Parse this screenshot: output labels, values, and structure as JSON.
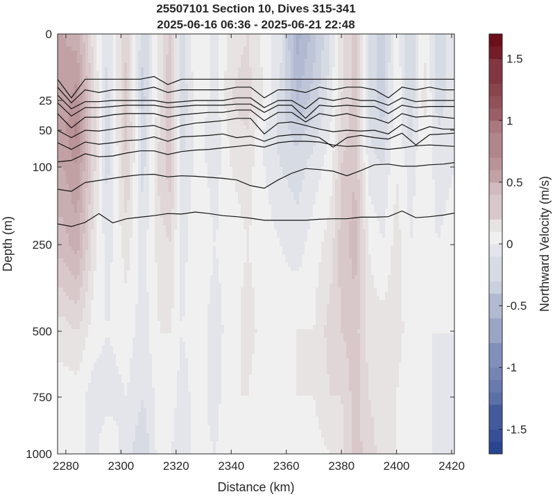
{
  "chart_data": {
    "type": "heatmap",
    "title": "25507101 Section 10, Dives 315-341",
    "subtitle": "2025-06-16 06:36 - 2025-06-21 22:48",
    "xlabel": "Distance (km)",
    "ylabel": "Depth (m)",
    "xlim": [
      2277,
      2421
    ],
    "x_ticks": [
      2280,
      2300,
      2320,
      2340,
      2360,
      2380,
      2400,
      2420
    ],
    "y_scale": "piecewise",
    "y_ticks": [
      0,
      25,
      50,
      100,
      250,
      500,
      750,
      1000
    ],
    "ylim": [
      0,
      1000
    ],
    "y_reversed": true,
    "grid": false,
    "colorbar": {
      "label": "Northward Velocity (m/s)",
      "range": [
        -1.7,
        1.7
      ],
      "ticks": [
        -1.5,
        -1,
        -0.5,
        0,
        0.5,
        1,
        1.5
      ],
      "tick_labels": [
        "-1.5",
        "-1",
        "-0.5",
        "0",
        "0.5",
        "1",
        "1.5"
      ],
      "colormap": "blue-white-red diverging",
      "negative_color": "#1e3a8a",
      "zero_color": "#f0f0f0",
      "positive_color": "#6b0f1a"
    },
    "velocity_profiles": [
      {
        "x": 2279,
        "values": [
          0.55,
          0.6,
          0.6,
          0.55,
          0.4,
          0.1,
          0.0,
          -0.05
        ]
      },
      {
        "x": 2284,
        "values": [
          0.5,
          0.7,
          0.8,
          0.65,
          0.5,
          0.15,
          0.0,
          0.0
        ]
      },
      {
        "x": 2290,
        "values": [
          0.1,
          0.2,
          0.2,
          0.2,
          0.1,
          0.0,
          -0.1,
          -0.1
        ]
      },
      {
        "x": 2295,
        "values": [
          -0.15,
          -0.2,
          -0.2,
          -0.2,
          -0.1,
          -0.05,
          -0.1,
          0.05
        ]
      },
      {
        "x": 2302,
        "values": [
          0.25,
          0.3,
          0.3,
          0.25,
          0.1,
          0.0,
          -0.05,
          -0.1
        ]
      },
      {
        "x": 2308,
        "values": [
          -0.25,
          -0.3,
          -0.2,
          -0.2,
          -0.1,
          -0.1,
          -0.15,
          -0.25
        ]
      },
      {
        "x": 2314,
        "values": [
          0.1,
          0.1,
          0.15,
          0.2,
          0.1,
          0.05,
          0.0,
          0.0
        ]
      },
      {
        "x": 2318,
        "values": [
          0.3,
          0.35,
          0.35,
          0.3,
          0.15,
          0.05,
          0.0,
          -0.05
        ]
      },
      {
        "x": 2322,
        "values": [
          -0.2,
          -0.25,
          -0.2,
          -0.15,
          -0.1,
          -0.05,
          -0.1,
          -0.1
        ]
      },
      {
        "x": 2328,
        "values": [
          0.05,
          0.05,
          0.0,
          0.0,
          0.05,
          0.0,
          0.0,
          0.0
        ]
      },
      {
        "x": 2334,
        "values": [
          -0.1,
          -0.1,
          -0.15,
          -0.1,
          -0.05,
          -0.1,
          -0.1,
          -0.05
        ]
      },
      {
        "x": 2340,
        "values": [
          0.1,
          0.15,
          0.1,
          0.05,
          0.0,
          0.0,
          0.05,
          0.0
        ]
      },
      {
        "x": 2346,
        "values": [
          0.15,
          0.2,
          0.15,
          0.1,
          0.05,
          0.1,
          0.05,
          0.0
        ]
      },
      {
        "x": 2352,
        "values": [
          0.0,
          0.05,
          -0.05,
          -0.05,
          0.0,
          0.0,
          -0.05,
          -0.05
        ]
      },
      {
        "x": 2358,
        "values": [
          -0.1,
          -0.2,
          -0.2,
          -0.15,
          -0.05,
          0.0,
          0.0,
          0.0
        ]
      },
      {
        "x": 2364,
        "values": [
          -0.6,
          -0.45,
          -0.3,
          -0.2,
          -0.1,
          0.05,
          0.05,
          -0.05
        ]
      },
      {
        "x": 2370,
        "values": [
          -0.4,
          -0.3,
          -0.2,
          -0.1,
          0.0,
          0.05,
          0.05,
          0.0
        ]
      },
      {
        "x": 2376,
        "values": [
          -0.15,
          -0.1,
          -0.05,
          0.0,
          0.1,
          0.2,
          0.15,
          0.05
        ]
      },
      {
        "x": 2380,
        "values": [
          0.1,
          0.15,
          0.2,
          0.25,
          0.3,
          0.25,
          0.15,
          0.1
        ]
      },
      {
        "x": 2385,
        "values": [
          0.3,
          0.3,
          0.3,
          0.35,
          0.4,
          0.3,
          0.3,
          0.3
        ]
      },
      {
        "x": 2390,
        "values": [
          -0.2,
          -0.2,
          -0.15,
          -0.1,
          0.05,
          0.1,
          0.15,
          0.2
        ]
      },
      {
        "x": 2395,
        "values": [
          -0.3,
          -0.3,
          -0.25,
          -0.15,
          -0.05,
          0.1,
          0.1,
          0.1
        ]
      },
      {
        "x": 2400,
        "values": [
          0.0,
          0.05,
          0.05,
          0.05,
          0.1,
          0.1,
          0.05,
          0.05
        ]
      },
      {
        "x": 2405,
        "values": [
          -0.25,
          -0.25,
          -0.2,
          -0.1,
          -0.05,
          0.0,
          -0.05,
          -0.05
        ]
      },
      {
        "x": 2410,
        "values": [
          0.05,
          0.1,
          0.05,
          0.05,
          0.0,
          -0.05,
          0.0,
          0.0
        ]
      },
      {
        "x": 2415,
        "values": [
          -0.2,
          -0.2,
          -0.15,
          -0.1,
          -0.05,
          -0.05,
          -0.1,
          -0.1
        ]
      },
      {
        "x": 2421,
        "values": [
          -0.1,
          -0.1,
          -0.05,
          -0.05,
          0.0,
          -0.05,
          -0.1,
          -0.1
        ]
      }
    ],
    "profile_depths": [
      0,
      25,
      50,
      100,
      250,
      500,
      750,
      1000
    ],
    "density_contours": {
      "x": [
        2277,
        2282,
        2287,
        2292,
        2297,
        2302,
        2307,
        2312,
        2317,
        2322,
        2327,
        2332,
        2337,
        2342,
        2347,
        2352,
        2357,
        2362,
        2367,
        2372,
        2377,
        2382,
        2387,
        2392,
        2397,
        2402,
        2407,
        2412,
        2417,
        2421
      ],
      "lines": [
        [
          17,
          24,
          17,
          17,
          17,
          17,
          17,
          16,
          19,
          17,
          17,
          17,
          17,
          17,
          17,
          17,
          17,
          17,
          17,
          17,
          17,
          17,
          17,
          17,
          17,
          17,
          17,
          17,
          17,
          17
        ],
        [
          20,
          27,
          21,
          22,
          21,
          21,
          21,
          20,
          22,
          21,
          21,
          21,
          21,
          20,
          20,
          24,
          21,
          21,
          22,
          20,
          21,
          20,
          20,
          21,
          24,
          20,
          21,
          20,
          21,
          21
        ],
        [
          23,
          32,
          26,
          26,
          25,
          25,
          25,
          25,
          27,
          26,
          25,
          25,
          25,
          24,
          24,
          31,
          25,
          25,
          32,
          24,
          25,
          24,
          25,
          25,
          29,
          24,
          26,
          25,
          25,
          25
        ],
        [
          27,
          38,
          31,
          31,
          30,
          29,
          29,
          29,
          31,
          30,
          29,
          29,
          29,
          28,
          28,
          35,
          29,
          29,
          40,
          29,
          30,
          29,
          30,
          30,
          36,
          29,
          31,
          30,
          30,
          30
        ],
        [
          36,
          48,
          39,
          39,
          37,
          36,
          36,
          36,
          39,
          37,
          36,
          35,
          35,
          33,
          33,
          42,
          35,
          35,
          43,
          36,
          38,
          36,
          39,
          40,
          44,
          36,
          39,
          38,
          39,
          40
        ],
        [
          50,
          60,
          50,
          51,
          49,
          47,
          47,
          46,
          50,
          46,
          44,
          43,
          42,
          40,
          40,
          55,
          44,
          43,
          46,
          49,
          52,
          50,
          51,
          50,
          55,
          45,
          52,
          47,
          49,
          49
        ],
        [
          67,
          76,
          66,
          69,
          67,
          64,
          63,
          59,
          65,
          59,
          58,
          57,
          55,
          60,
          58,
          65,
          58,
          56,
          56,
          60,
          73,
          60,
          57,
          60,
          62,
          54,
          70,
          56,
          55,
          54
        ],
        [
          93,
          91,
          82,
          86,
          85,
          81,
          78,
          78,
          83,
          79,
          77,
          76,
          74,
          72,
          70,
          73,
          67,
          65,
          65,
          66,
          70,
          72,
          71,
          74,
          76,
          74,
          71,
          70,
          71,
          72
        ],
        [
          143,
          147,
          130,
          126,
          122,
          118,
          115,
          114,
          119,
          117,
          118,
          120,
          122,
          125,
          136,
          141,
          125,
          112,
          103,
          105,
          108,
          117,
          107,
          97,
          96,
          99,
          99,
          97,
          96,
          94
        ],
        [
          210,
          215,
          207,
          190,
          208,
          200,
          197,
          194,
          190,
          191,
          187,
          190,
          194,
          196,
          199,
          203,
          203,
          203,
          203,
          201,
          200,
          200,
          197,
          197,
          196,
          185,
          198,
          196,
          193,
          189
        ]
      ]
    }
  }
}
